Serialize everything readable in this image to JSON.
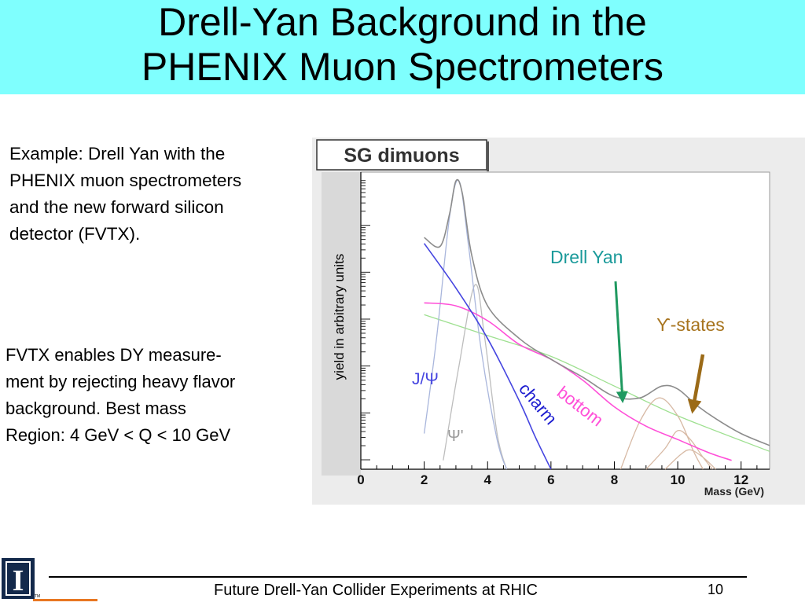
{
  "slide": {
    "title_line1": "Drell-Yan Background in the",
    "title_line2": "PHENIX Muon Spectrometers",
    "text1": [
      "Example: Drell Yan with the",
      "PHENIX muon spectrometers",
      "and the new forward silicon",
      "detector (FVTX)."
    ],
    "text2": [
      "FVTX enables DY measure-",
      "ment by rejecting heavy flavor",
      "background. Best mass",
      "Region:  4 GeV < Q < 10 GeV"
    ],
    "footer": "Future Drell-Yan Collider Experiments at RHIC",
    "page_number": "10",
    "logo_letter": "I",
    "logo_tm": "TM"
  },
  "chart_data": {
    "type": "line",
    "title": "SG dimuons",
    "xlabel": "Mass (GeV)",
    "ylabel": "yield in arbitrary units",
    "xlim": [
      0,
      12.9
    ],
    "ylim": [
      0,
      1
    ],
    "x_ticks": [
      0,
      2,
      4,
      6,
      8,
      10,
      12
    ],
    "y_scale": "log",
    "grid": false,
    "colors": {
      "total": "#8c8c8c",
      "jpsi": "#a9b6dc",
      "psi_prime": "#bdbdbd",
      "charm": "#4545e0",
      "bottom": "#ff4fd8",
      "drell_yan": "#9ee090",
      "upsilon": "#d7b9a4",
      "drell_yan_label": "#1a9a9a",
      "upsilon_label": "#a7741e",
      "dy_arrow": "#1f9960",
      "ups_arrow": "#9b6a17"
    },
    "annotations": {
      "drell_yan": "Drell Yan",
      "upsilon": "ϒ-states",
      "jpsi": "J/Ψ",
      "psi_prime": "Ψ'",
      "charm": "charm",
      "bottom": "bottom"
    },
    "series": [
      {
        "name": "total",
        "points": [
          [
            2.0,
            0.78
          ],
          [
            2.5,
            0.75
          ],
          [
            2.8,
            0.86
          ],
          [
            3.0,
            0.97
          ],
          [
            3.2,
            0.93
          ],
          [
            3.5,
            0.72
          ],
          [
            4.0,
            0.55
          ],
          [
            5.0,
            0.44
          ],
          [
            6.0,
            0.37
          ],
          [
            7.0,
            0.31
          ],
          [
            8.0,
            0.245
          ],
          [
            8.8,
            0.24
          ],
          [
            9.5,
            0.28
          ],
          [
            10.0,
            0.27
          ],
          [
            10.6,
            0.215
          ],
          [
            11.2,
            0.17
          ],
          [
            12.0,
            0.12
          ],
          [
            12.9,
            0.08
          ]
        ]
      },
      {
        "name": "J/Ψ",
        "points": [
          [
            2.0,
            0.12
          ],
          [
            2.4,
            0.45
          ],
          [
            2.8,
            0.85
          ],
          [
            3.1,
            0.97
          ],
          [
            3.4,
            0.75
          ],
          [
            3.8,
            0.4
          ],
          [
            4.3,
            0.1
          ],
          [
            4.6,
            0.0
          ]
        ]
      },
      {
        "name": "Ψ'",
        "points": [
          [
            2.6,
            0.03
          ],
          [
            3.1,
            0.35
          ],
          [
            3.6,
            0.62
          ],
          [
            3.9,
            0.45
          ],
          [
            4.3,
            0.12
          ],
          [
            4.6,
            0.0
          ]
        ]
      },
      {
        "name": "charm",
        "points": [
          [
            2.0,
            0.76
          ],
          [
            3.0,
            0.61
          ],
          [
            4.0,
            0.44
          ],
          [
            5.0,
            0.23
          ],
          [
            5.5,
            0.11
          ],
          [
            6.0,
            0.0
          ]
        ]
      },
      {
        "name": "bottom",
        "points": [
          [
            2.0,
            0.56
          ],
          [
            3.0,
            0.55
          ],
          [
            4.0,
            0.5
          ],
          [
            5.0,
            0.42
          ],
          [
            6.0,
            0.37
          ],
          [
            7.0,
            0.3
          ],
          [
            8.0,
            0.21
          ],
          [
            9.0,
            0.145
          ],
          [
            10.0,
            0.1
          ],
          [
            11.0,
            0.055
          ],
          [
            11.7,
            0.03
          ]
        ]
      },
      {
        "name": "Drell Yan",
        "points": [
          [
            2.0,
            0.52
          ],
          [
            4.0,
            0.45
          ],
          [
            6.0,
            0.38
          ],
          [
            8.0,
            0.28
          ],
          [
            10.0,
            0.18
          ],
          [
            12.9,
            0.06
          ]
        ]
      },
      {
        "name": "ϒ(1S)",
        "points": [
          [
            8.2,
            0.0
          ],
          [
            8.8,
            0.16
          ],
          [
            9.4,
            0.24
          ],
          [
            10.0,
            0.18
          ],
          [
            10.5,
            0.06
          ],
          [
            10.8,
            0.0
          ]
        ]
      },
      {
        "name": "ϒ(2S)",
        "points": [
          [
            9.0,
            0.0
          ],
          [
            9.6,
            0.07
          ],
          [
            10.0,
            0.13
          ],
          [
            10.4,
            0.1
          ],
          [
            10.8,
            0.04
          ],
          [
            11.1,
            0.0
          ]
        ]
      },
      {
        "name": "ϒ(3S)",
        "points": [
          [
            9.6,
            0.0
          ],
          [
            10.1,
            0.05
          ],
          [
            10.4,
            0.065
          ],
          [
            10.8,
            0.04
          ],
          [
            11.2,
            0.0
          ]
        ]
      }
    ]
  }
}
